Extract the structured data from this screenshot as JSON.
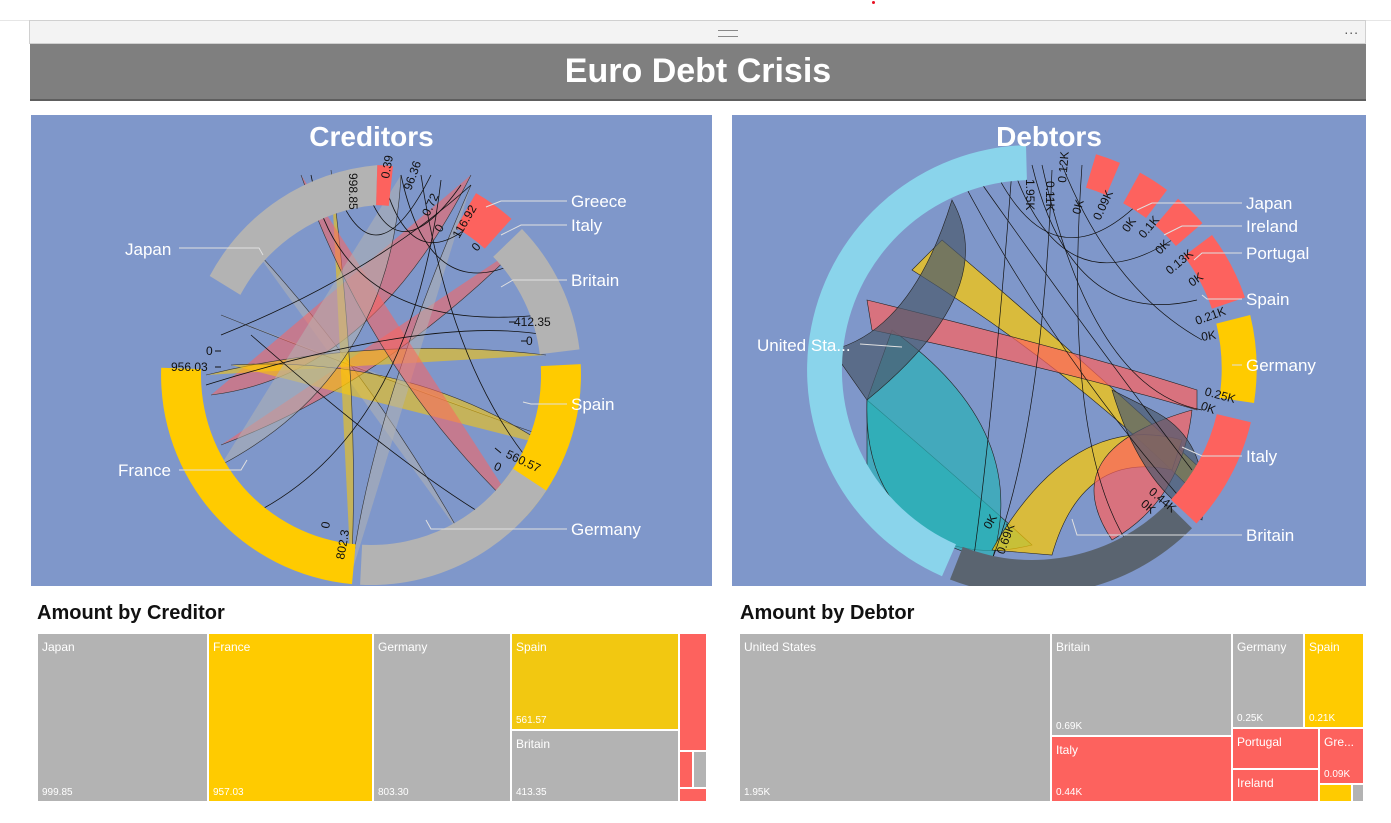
{
  "dashboard": {
    "title": "Euro Debt Crisis",
    "more_label": "..."
  },
  "colors": {
    "banner": "#7f7f7f",
    "panel_bg": "#7f97ca",
    "gray": "#b3b3b3",
    "gold": "#ffcb00",
    "red": "#fd625e",
    "teal": "#2ab0b6",
    "light_blue": "#8ad4eb",
    "dark_slate": "#4a5a6e"
  },
  "creditors_chart": {
    "title": "Creditors",
    "countries": [
      "Greece",
      "Italy",
      "Japan",
      "Britain",
      "Spain",
      "France",
      "Germany"
    ],
    "tick_values": [
      "998.85",
      "0.39",
      "96.36",
      "0.72",
      "0",
      "116.92",
      "0",
      "412.35",
      "0",
      "0",
      "956.03",
      "560.57",
      "0",
      "0",
      "802.3"
    ]
  },
  "debtors_chart": {
    "title": "Debtors",
    "countries": [
      "Japan",
      "Ireland",
      "Portugal",
      "Spain",
      "United Sta...",
      "Germany",
      "Italy",
      "Britain"
    ],
    "tick_values": [
      "1.95K",
      "0.11K",
      "0.12K",
      "0K",
      "0.09K",
      "0K",
      "0.1K",
      "0K",
      "0.13K",
      "0K",
      "0.21K",
      "0K",
      "0.25K",
      "0K",
      "0.44K",
      "0K",
      "0K",
      "0.69K"
    ]
  },
  "amount_by_creditor": {
    "title": "Amount by Creditor",
    "cells": [
      {
        "name": "Japan",
        "value": "999.85"
      },
      {
        "name": "France",
        "value": "957.03"
      },
      {
        "name": "Germany",
        "value": "803.30"
      },
      {
        "name": "Spain",
        "value": "561.57"
      },
      {
        "name": "Britain",
        "value": "413.35"
      }
    ]
  },
  "amount_by_debtor": {
    "title": "Amount by Debtor",
    "cells": [
      {
        "name": "United States",
        "value": "1.95K"
      },
      {
        "name": "Britain",
        "value": "0.69K"
      },
      {
        "name": "Germany",
        "value": "0.25K"
      },
      {
        "name": "Spain",
        "value": "0.21K"
      },
      {
        "name": "Italy",
        "value": "0.44K"
      },
      {
        "name": "Portugal",
        "value": ""
      },
      {
        "name": "Gre...",
        "value": "0.09K"
      },
      {
        "name": "Ireland",
        "value": ""
      }
    ]
  }
}
